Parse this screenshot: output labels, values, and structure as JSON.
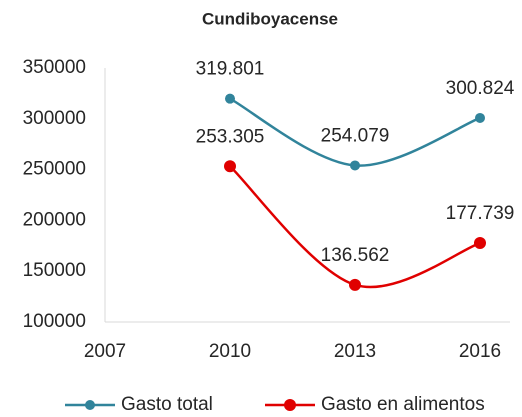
{
  "chart_data": {
    "type": "line",
    "title": "Cundiboyacense",
    "x": [
      2010,
      2013,
      2016
    ],
    "xlim": [
      2007,
      2016
    ],
    "xticks": [
      2007,
      2010,
      2013,
      2016
    ],
    "ylim": [
      100000,
      350000
    ],
    "yticks": [
      100000,
      150000,
      200000,
      250000,
      300000,
      350000
    ],
    "grid": false,
    "legend": "bottom",
    "smooth": true,
    "series": [
      {
        "name": "Gasto total",
        "color": "#31849b",
        "values": [
          319801,
          254079,
          300824
        ],
        "value_labels": [
          "319.801",
          "254.079",
          "300.824"
        ]
      },
      {
        "name": "Gasto en alimentos",
        "color": "#e00000",
        "values": [
          253305,
          136562,
          177739
        ],
        "value_labels": [
          "253.305",
          "136.562",
          "177.739"
        ]
      }
    ]
  }
}
